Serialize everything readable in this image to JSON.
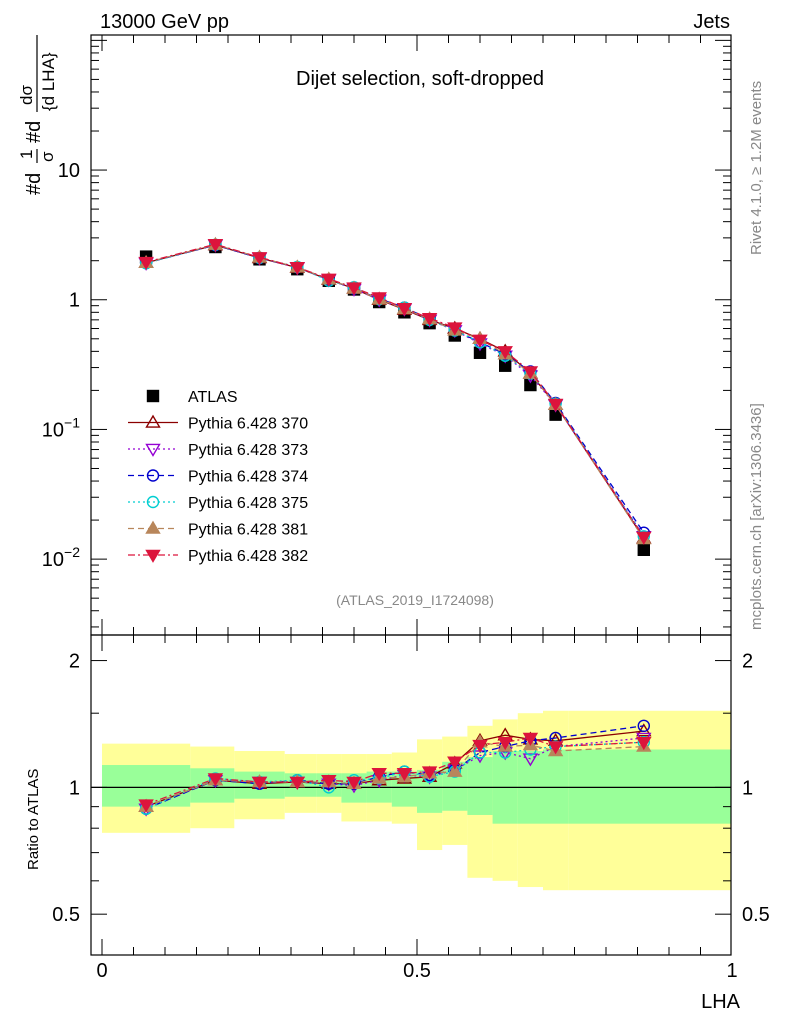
{
  "header": {
    "left": "13000 GeV pp",
    "right": "Jets"
  },
  "side_text": {
    "rivet": "Rivet 4.1.0, ≥ 1.2M events",
    "source": "mcplots.cern.ch [arXiv:1306.3436]"
  },
  "colors": {
    "atlas": "#000000",
    "p370": "#8B0000",
    "p373": "#9400D3",
    "p374": "#0000CD",
    "p375": "#00CED1",
    "p381": "#B8865B",
    "p382": "#DC143C",
    "band_inner": "#99FF99",
    "band_outer": "#FFFF99"
  },
  "chart_data": [
    {
      "type": "scatter",
      "panel": "main",
      "title": "Dijet selection, soft-dropped",
      "watermark": "(ATLAS_2019_I1724098)",
      "xlabel": "LHA",
      "ylabel_parts": {
        "prefix": "#d",
        "frac1_num": "1",
        "frac1_den": "σ",
        "mid": "#d",
        "frac2_num": "dσ",
        "frac2_den": "{d LHA}"
      },
      "xlim": [
        0,
        1
      ],
      "ylim": [
        0.0026,
        110
      ],
      "yscale": "log",
      "yticks": [
        {
          "value": 0.01,
          "base": "10",
          "exp": "−2"
        },
        {
          "value": 0.1,
          "base": "10",
          "exp": "−1"
        },
        {
          "value": 1,
          "label": "1"
        },
        {
          "value": 10,
          "label": "10"
        }
      ],
      "x": [
        0.07,
        0.18,
        0.25,
        0.31,
        0.36,
        0.4,
        0.44,
        0.48,
        0.52,
        0.56,
        0.6,
        0.64,
        0.68,
        0.72,
        0.86
      ],
      "series": [
        {
          "name": "ATLAS",
          "key": "atlas",
          "marker": "square",
          "line": "none",
          "values": [
            2.15,
            2.55,
            2.05,
            1.72,
            1.4,
            1.2,
            0.96,
            0.8,
            0.66,
            0.53,
            0.39,
            0.31,
            0.22,
            0.13,
            0.0118
          ]
        },
        {
          "name": "Pythia 6.428 370",
          "key": "p370",
          "marker": "triangle-open",
          "line": "solid",
          "values": [
            1.93,
            2.64,
            2.1,
            1.77,
            1.43,
            1.22,
            1.0,
            0.84,
            0.7,
            0.6,
            0.5,
            0.4,
            0.27,
            0.155,
            0.0145
          ]
        },
        {
          "name": "Pythia 6.428 373",
          "key": "p373",
          "marker": "triangle-down-open",
          "line": "dotted",
          "values": [
            1.92,
            2.65,
            2.1,
            1.77,
            1.43,
            1.21,
            1.0,
            0.85,
            0.7,
            0.58,
            0.46,
            0.37,
            0.26,
            0.155,
            0.015
          ]
        },
        {
          "name": "Pythia 6.428 374",
          "key": "p374",
          "marker": "circle-open",
          "line": "dashed",
          "values": [
            1.92,
            2.64,
            2.1,
            1.78,
            1.43,
            1.22,
            1.02,
            0.87,
            0.71,
            0.58,
            0.47,
            0.38,
            0.28,
            0.16,
            0.016
          ]
        },
        {
          "name": "Pythia 6.428 375",
          "key": "p375",
          "marker": "circle-open",
          "line": "dotted",
          "values": [
            1.91,
            2.66,
            2.11,
            1.79,
            1.4,
            1.25,
            1.01,
            0.87,
            0.7,
            0.58,
            0.47,
            0.37,
            0.27,
            0.158,
            0.015
          ]
        },
        {
          "name": "Pythia 6.428 381",
          "key": "p381",
          "marker": "triangle-filled",
          "line": "dashed",
          "values": [
            1.93,
            2.66,
            2.12,
            1.78,
            1.44,
            1.22,
            1.01,
            0.85,
            0.71,
            0.58,
            0.5,
            0.38,
            0.27,
            0.155,
            0.0143
          ]
        },
        {
          "name": "Pythia 6.428 382",
          "key": "p382",
          "marker": "triangle-down-filled",
          "line": "dashdot",
          "values": [
            1.95,
            2.68,
            2.12,
            1.78,
            1.45,
            1.24,
            1.04,
            0.86,
            0.72,
            0.61,
            0.49,
            0.4,
            0.28,
            0.157,
            0.0148
          ]
        }
      ],
      "legend": {
        "placement": "center-left",
        "entries": [
          "ATLAS",
          "Pythia 6.428 370",
          "Pythia 6.428 373",
          "Pythia 6.428 374",
          "Pythia 6.428 375",
          "Pythia 6.428 381",
          "Pythia 6.428 382"
        ]
      }
    },
    {
      "type": "scatter",
      "panel": "ratio",
      "ylabel": "Ratio to ATLAS",
      "xlabel": "LHA",
      "xlim": [
        0,
        1
      ],
      "ylim": [
        0.4,
        2.3
      ],
      "yscale": "log",
      "yticks": [
        {
          "value": 0.5,
          "label": "0.5"
        },
        {
          "value": 1,
          "label": "1"
        },
        {
          "value": 2,
          "label": "2"
        }
      ],
      "xticks": [
        {
          "value": 0,
          "label": "0"
        },
        {
          "value": 0.5,
          "label": "0.5"
        },
        {
          "value": 1,
          "label": "1"
        }
      ],
      "reference_line": 1,
      "bands": {
        "edges": [
          0,
          0.14,
          0.21,
          0.29,
          0.34,
          0.38,
          0.42,
          0.46,
          0.5,
          0.54,
          0.58,
          0.62,
          0.66,
          0.7,
          0.74,
          1.0
        ],
        "inner": [
          [
            0.9,
            1.13
          ],
          [
            0.92,
            1.11
          ],
          [
            0.94,
            1.09
          ],
          [
            0.95,
            1.08
          ],
          [
            0.95,
            1.08
          ],
          [
            0.92,
            1.08
          ],
          [
            0.92,
            1.09
          ],
          [
            0.9,
            1.09
          ],
          [
            0.87,
            1.1
          ],
          [
            0.88,
            1.15
          ],
          [
            0.86,
            1.18
          ],
          [
            0.82,
            1.22
          ],
          [
            0.82,
            1.22
          ],
          [
            0.82,
            1.23
          ],
          [
            0.82,
            1.23
          ]
        ],
        "outer": [
          [
            0.78,
            1.27
          ],
          [
            0.8,
            1.25
          ],
          [
            0.84,
            1.22
          ],
          [
            0.87,
            1.2
          ],
          [
            0.87,
            1.2
          ],
          [
            0.83,
            1.2
          ],
          [
            0.83,
            1.2
          ],
          [
            0.82,
            1.21
          ],
          [
            0.71,
            1.3
          ],
          [
            0.73,
            1.32
          ],
          [
            0.61,
            1.4
          ],
          [
            0.6,
            1.45
          ],
          [
            0.58,
            1.5
          ],
          [
            0.57,
            1.52
          ],
          [
            0.57,
            1.52
          ]
        ]
      },
      "x": [
        0.07,
        0.18,
        0.25,
        0.31,
        0.36,
        0.4,
        0.44,
        0.48,
        0.52,
        0.56,
        0.6,
        0.64,
        0.68,
        0.72,
        0.86
      ],
      "series": [
        {
          "name": "Pythia 6.428 370",
          "key": "p370",
          "values": [
            0.9,
            1.04,
            1.02,
            1.03,
            1.02,
            1.02,
            1.04,
            1.05,
            1.06,
            1.14,
            1.29,
            1.33,
            1.3,
            1.29,
            1.36
          ]
        },
        {
          "name": "Pythia 6.428 373",
          "key": "p373",
          "values": [
            0.89,
            1.04,
            1.03,
            1.03,
            1.02,
            1.01,
            1.04,
            1.07,
            1.06,
            1.1,
            1.19,
            1.21,
            1.17,
            1.25,
            1.31
          ]
        },
        {
          "name": "Pythia 6.428 374",
          "key": "p374",
          "values": [
            0.89,
            1.04,
            1.02,
            1.04,
            1.02,
            1.02,
            1.06,
            1.09,
            1.07,
            1.1,
            1.21,
            1.25,
            1.29,
            1.31,
            1.4
          ]
        },
        {
          "name": "Pythia 6.428 375",
          "key": "p375",
          "values": [
            0.89,
            1.05,
            1.03,
            1.04,
            1.0,
            1.04,
            1.05,
            1.09,
            1.06,
            1.09,
            1.21,
            1.21,
            1.23,
            1.25,
            1.28
          ]
        },
        {
          "name": "Pythia 6.428 381",
          "key": "p381",
          "values": [
            0.9,
            1.04,
            1.03,
            1.03,
            1.03,
            1.02,
            1.05,
            1.06,
            1.08,
            1.09,
            1.28,
            1.25,
            1.26,
            1.22,
            1.25
          ]
        },
        {
          "name": "Pythia 6.428 382",
          "key": "p382",
          "values": [
            0.91,
            1.05,
            1.03,
            1.03,
            1.04,
            1.03,
            1.08,
            1.08,
            1.09,
            1.15,
            1.26,
            1.28,
            1.31,
            1.25,
            1.28
          ]
        }
      ]
    }
  ]
}
